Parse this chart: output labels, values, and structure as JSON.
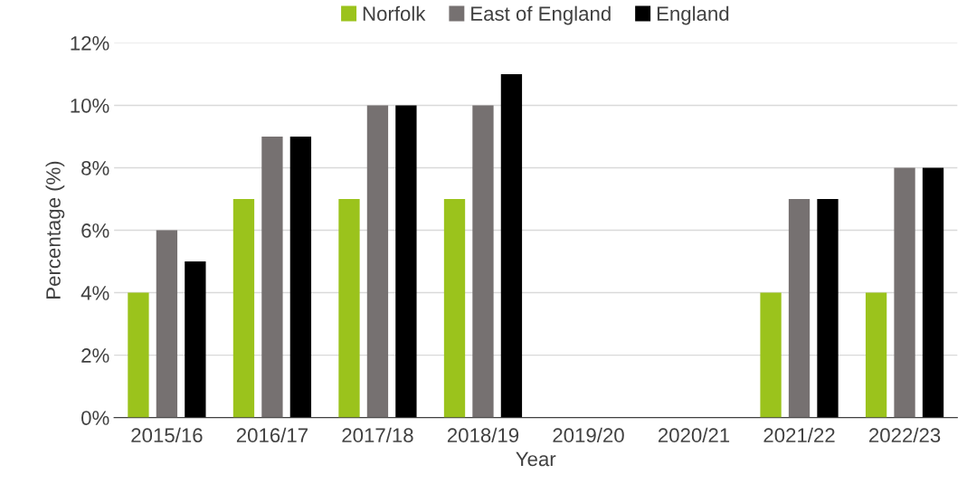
{
  "chart_data": {
    "type": "bar",
    "xlabel": "Year",
    "ylabel": "Percentage (%)",
    "categories": [
      "2015/16",
      "2016/17",
      "2017/18",
      "2018/19",
      "2019/20",
      "2020/21",
      "2021/22",
      "2022/23"
    ],
    "series": [
      {
        "name": "Norfolk",
        "color": "#9bc31c",
        "values": [
          4,
          7,
          7,
          7,
          null,
          null,
          4,
          4
        ]
      },
      {
        "name": "East of England",
        "color": "#767171",
        "values": [
          6,
          9,
          10,
          10,
          null,
          null,
          7,
          8
        ]
      },
      {
        "name": "England",
        "color": "#000000",
        "values": [
          5,
          9,
          10,
          11,
          null,
          null,
          7,
          8
        ]
      }
    ],
    "ylim": [
      0,
      12
    ],
    "yticks": [
      {
        "value": 0,
        "label": "0%"
      },
      {
        "value": 2,
        "label": "2%"
      },
      {
        "value": 4,
        "label": "4%"
      },
      {
        "value": 6,
        "label": "6%"
      },
      {
        "value": 8,
        "label": "8%"
      },
      {
        "value": 10,
        "label": "10%"
      },
      {
        "value": 12,
        "label": "12%"
      }
    ],
    "grid": "y",
    "legend": "top"
  }
}
